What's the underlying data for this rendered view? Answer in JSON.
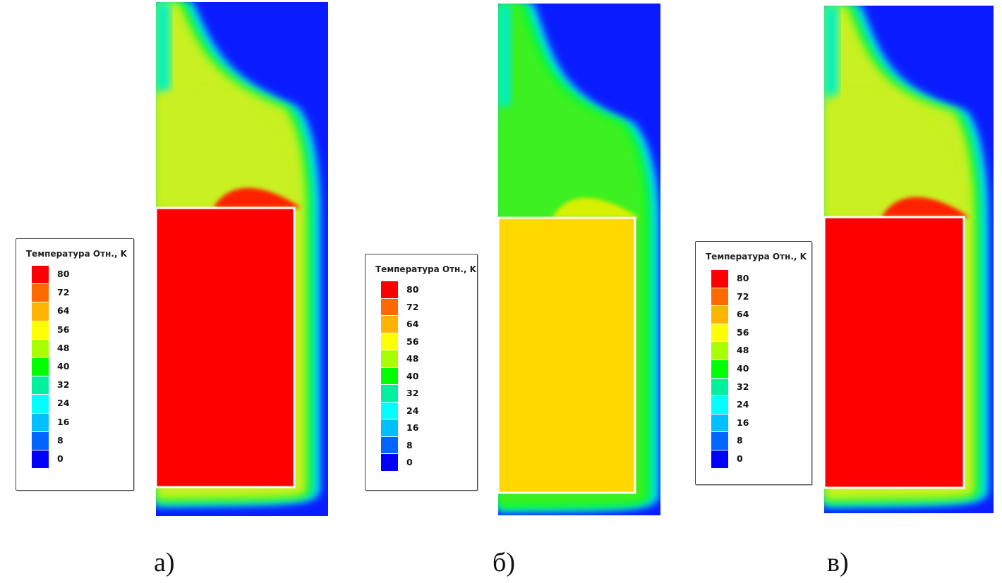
{
  "legend": {
    "title": "Температура Отн., K",
    "levels": [
      {
        "value": "80",
        "color": "#ff0000"
      },
      {
        "value": "72",
        "color": "#ff6a00"
      },
      {
        "value": "64",
        "color": "#ffb400"
      },
      {
        "value": "56",
        "color": "#ffff00"
      },
      {
        "value": "48",
        "color": "#a8ff00"
      },
      {
        "value": "40",
        "color": "#00ff00"
      },
      {
        "value": "32",
        "color": "#00f0a0"
      },
      {
        "value": "24",
        "color": "#00ffff"
      },
      {
        "value": "16",
        "color": "#00bfff"
      },
      {
        "value": "8",
        "color": "#0066ff"
      },
      {
        "value": "0",
        "color": "#0000ff"
      }
    ]
  },
  "panels": [
    {
      "caption": "а)",
      "block_color": "#ff0000",
      "pool_color": "#c8f020",
      "hot_edge": "#ff2000"
    },
    {
      "caption": "б)",
      "block_color": "#ffd800",
      "pool_color": "#3cf020",
      "hot_edge": "#d8f000"
    },
    {
      "caption": "в)",
      "block_color": "#ff0000",
      "pool_color": "#c8f020",
      "hot_edge": "#ff2000"
    }
  ]
}
